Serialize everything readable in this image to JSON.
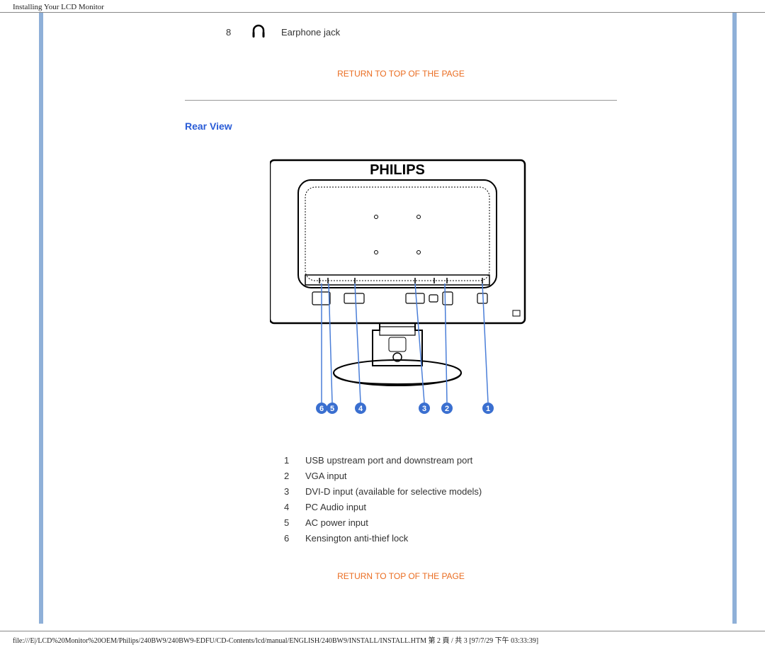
{
  "header": {
    "title": "Installing Your LCD Monitor"
  },
  "item8": {
    "num": "8",
    "label": "Earphone jack"
  },
  "link": {
    "top": "RETURN TO TOP OF THE PAGE"
  },
  "section": {
    "rear": "Rear View"
  },
  "monitor": {
    "brand": "PHILIPS",
    "colors": {
      "callout_fill": "#3a6fd0",
      "callout_text": "#ffffff",
      "line": "#4a7ed8",
      "body": "#000000"
    },
    "callouts": [
      "6",
      "5",
      "4",
      "3",
      "2",
      "1"
    ]
  },
  "ports": {
    "items": [
      {
        "n": "1",
        "label": "USB upstream port and downstream port"
      },
      {
        "n": "2",
        "label": "VGA input"
      },
      {
        "n": "3",
        "label": "DVI-D input (available for selective models)"
      },
      {
        "n": "4",
        "label": "PC Audio input"
      },
      {
        "n": "5",
        "label": "AC power input"
      },
      {
        "n": "6",
        "label": "Kensington anti-thief lock"
      }
    ]
  },
  "footer": {
    "text": "file:///E|/LCD%20Monitor%20OEM/Philips/240BW9/240BW9-EDFU/CD-Contents/lcd/manual/ENGLISH/240BW9/INSTALL/INSTALL.HTM 第 2 頁 / 共 3 [97/7/29 下午 03:33:39]"
  }
}
